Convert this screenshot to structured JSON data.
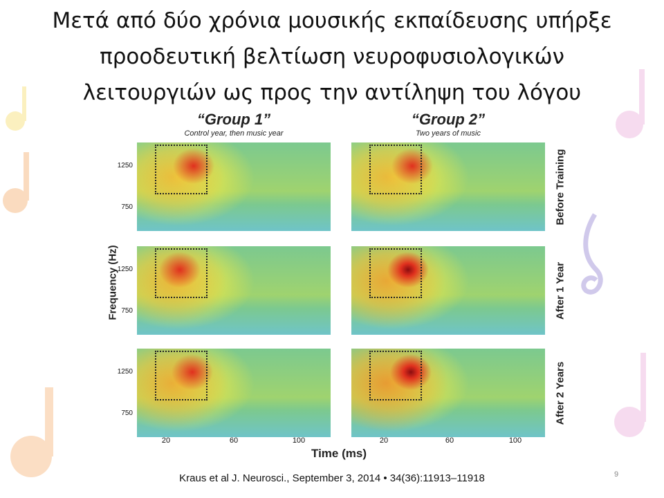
{
  "slide": {
    "title_lines": [
      "Μετά από δύο χρόνια μουσικής εκπαίδευσης υπήρξε",
      "προοδευτική βελτίωση νευροφυσιολογικών",
      "λειτουργιών ως προς την αντίληψη του λόγου"
    ],
    "page_number": "9"
  },
  "figure": {
    "groups": [
      {
        "title": "“Group 1”",
        "subtitle": "Control year, then music year"
      },
      {
        "title": "“Group 2”",
        "subtitle": "Two years of music"
      }
    ],
    "rows": [
      "Before Training",
      "After 1 Year",
      "After 2 Years"
    ],
    "y_axis_label": "Frequency (Hz)",
    "y_ticks": [
      "1250",
      "750"
    ],
    "x_axis_label": "Time (ms)",
    "x_ticks": [
      "20",
      "60",
      "100"
    ],
    "colors": {
      "background_field": "#7cc98f",
      "low": "#6fc4c8",
      "mid": "#f3ea45",
      "high": "#e0301e",
      "peak": "#8b0d10"
    }
  },
  "citation": "Kraus et al J. Neurosci., September 3, 2014 • 34(36):11913–11918"
}
